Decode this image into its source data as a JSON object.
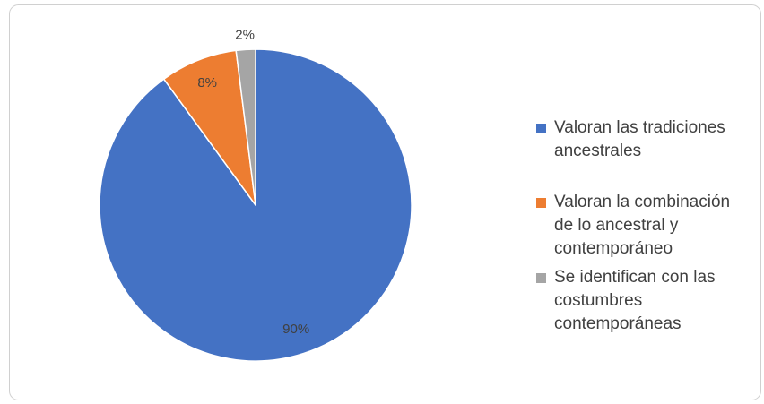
{
  "chart_data": {
    "type": "pie",
    "categories": [
      "Valoran las tradiciones ancestrales",
      "Valoran la combinación de lo ancestral y contemporáneo",
      "Se identifican con las costumbres contemporáneas"
    ],
    "values": [
      90,
      8,
      2
    ],
    "value_labels": [
      "90%",
      "8%",
      "2%"
    ],
    "colors": [
      "#4472c4",
      "#ed7d31",
      "#a5a5a5"
    ],
    "legend": "right"
  }
}
